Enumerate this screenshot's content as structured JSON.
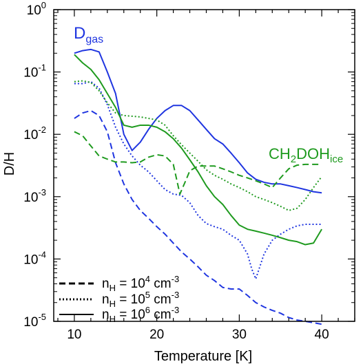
{
  "chart_data": {
    "type": "line",
    "xlabel": "Temperature [K]",
    "ylabel": "D/H",
    "xlim": [
      7.5,
      44
    ],
    "ylim": [
      1e-05,
      1
    ],
    "yscale": "log",
    "grid": false,
    "x_ticks": [
      "10",
      "20",
      "30",
      "40"
    ],
    "y_ticks": [
      {
        "base": "10",
        "exp": "-5"
      },
      {
        "base": "10",
        "exp": "-4"
      },
      {
        "base": "10",
        "exp": "-3"
      },
      {
        "base": "10",
        "exp": "-2"
      },
      {
        "base": "10",
        "exp": "-1"
      },
      {
        "base": "10",
        "exp": "0"
      }
    ],
    "annotations": [
      {
        "main": "D",
        "sub": "gas",
        "color": "#1f35e0"
      },
      {
        "main": "CH",
        "sub1": "2",
        "mid": "DOH",
        "sub2": "ice",
        "color": "#1e9a1e"
      }
    ],
    "legend": {
      "placement": "bottom-left",
      "entries": [
        {
          "style": "dashed",
          "prefix": "n",
          "sub": "H",
          "mid": " = 10",
          "sup": "4",
          "unit": " cm",
          "unit_sup": "-3"
        },
        {
          "style": "dotted",
          "prefix": "n",
          "sub": "H",
          "mid": " = 10",
          "sup": "5",
          "unit": " cm",
          "unit_sup": "-3"
        },
        {
          "style": "solid",
          "prefix": "n",
          "sub": "H",
          "mid": " = 10",
          "sup": "6",
          "unit": " cm",
          "unit_sup": "-3"
        }
      ]
    },
    "series": [
      {
        "species": "gas",
        "density": "1e4",
        "style": "dashed",
        "color": "#1f35e0",
        "x": [
          10,
          11,
          12,
          13,
          14,
          15,
          16,
          17,
          18,
          19,
          20,
          21,
          22,
          23,
          24,
          25,
          26,
          27,
          28,
          29,
          30,
          31,
          32,
          33,
          34,
          35,
          36,
          37,
          38,
          39,
          40
        ],
        "y": [
          0.018,
          0.022,
          0.024,
          0.02,
          0.011,
          0.0035,
          0.0016,
          0.0009,
          0.0006,
          0.00045,
          0.00033,
          0.00025,
          0.00018,
          0.00013,
          0.0001,
          7.5e-05,
          5.5e-05,
          4.5e-05,
          3.5e-05,
          3.3e-05,
          3.3e-05,
          2.6e-05,
          2e-05,
          1.7e-05,
          1.5e-05,
          1.35e-05,
          1.15e-05,
          1.05e-05,
          1e-05,
          9.5e-06,
          9e-06
        ]
      },
      {
        "species": "gas",
        "density": "1e5",
        "style": "dotted",
        "color": "#1f35e0",
        "x": [
          10,
          11,
          12,
          13,
          14,
          15,
          16,
          17,
          18,
          19,
          20,
          21,
          22,
          23,
          24,
          25,
          26,
          27,
          28,
          29,
          30,
          31,
          31.5,
          32,
          33,
          34,
          35,
          36,
          37,
          38,
          39,
          40
        ],
        "y": [
          0.065,
          0.065,
          0.07,
          0.055,
          0.03,
          0.013,
          0.007,
          0.0045,
          0.0032,
          0.0025,
          0.0018,
          0.0013,
          0.0011,
          0.00105,
          0.0008,
          0.0005,
          0.00037,
          0.00033,
          0.0003,
          0.00024,
          0.0002,
          0.00012,
          7e-05,
          4.8e-05,
          0.00012,
          0.0002,
          0.00025,
          0.0003,
          0.00034,
          0.00036,
          0.00036,
          0.00036
        ]
      },
      {
        "species": "gas",
        "density": "1e6",
        "style": "solid",
        "color": "#1f35e0",
        "x": [
          10,
          11,
          12,
          13,
          14,
          15,
          16,
          17,
          18,
          19,
          20,
          21,
          22,
          23,
          24,
          25,
          26,
          27,
          28,
          29,
          30,
          31,
          32,
          33,
          34,
          35,
          36,
          37,
          38,
          39,
          40
        ],
        "y": [
          0.2,
          0.22,
          0.23,
          0.21,
          0.1,
          0.045,
          0.01,
          0.0055,
          0.0075,
          0.012,
          0.018,
          0.024,
          0.029,
          0.029,
          0.024,
          0.017,
          0.012,
          0.0085,
          0.007,
          0.005,
          0.0035,
          0.0024,
          0.0019,
          0.0017,
          0.0016,
          0.0016,
          0.0015,
          0.0014,
          0.0013,
          0.0012,
          0.00115
        ]
      },
      {
        "species": "ice",
        "density": "1e4",
        "style": "dashed",
        "color": "#1e9a1e",
        "x": [
          10,
          11,
          12,
          13,
          14,
          15,
          16,
          17,
          18,
          19,
          20,
          21,
          22,
          22.8,
          23.5,
          24,
          25,
          26,
          27,
          28,
          29,
          30,
          31,
          32,
          33,
          34,
          35,
          36,
          37,
          38,
          39,
          40
        ],
        "y": [
          0.011,
          0.0095,
          0.0065,
          0.0045,
          0.004,
          0.0036,
          0.0036,
          0.0035,
          0.0036,
          0.0043,
          0.0047,
          0.0045,
          0.0033,
          0.0011,
          0.0018,
          0.0026,
          0.0031,
          0.0031,
          0.0031,
          0.0028,
          0.0025,
          0.0022,
          0.002,
          0.0018,
          0.0016,
          0.0014,
          0.002,
          0.0028,
          0.0032,
          0.0033,
          0.0033,
          0.0033
        ]
      },
      {
        "species": "ice",
        "density": "1e5",
        "style": "dotted",
        "color": "#1e9a1e",
        "x": [
          10,
          11,
          12,
          13,
          14,
          15,
          16,
          17,
          18,
          19,
          20,
          21,
          22,
          23,
          24,
          25,
          26,
          27,
          28,
          29,
          30,
          31,
          32,
          33,
          34,
          35,
          36,
          37,
          38,
          39,
          40
        ],
        "y": [
          0.07,
          0.072,
          0.068,
          0.05,
          0.032,
          0.022,
          0.02,
          0.0195,
          0.019,
          0.018,
          0.017,
          0.014,
          0.0095,
          0.0068,
          0.005,
          0.0037,
          0.0027,
          0.0022,
          0.0019,
          0.0016,
          0.0014,
          0.0012,
          0.001,
          0.0009,
          0.0008,
          0.0007,
          0.0006,
          0.00065,
          0.0009,
          0.0014,
          0.0021
        ]
      },
      {
        "species": "ice",
        "density": "1e6",
        "style": "solid",
        "color": "#1e9a1e",
        "x": [
          10,
          11,
          12,
          13,
          14,
          15,
          16,
          17,
          18,
          19,
          20,
          21,
          22,
          23,
          24,
          25,
          26,
          27,
          28,
          29,
          30,
          31,
          32,
          33,
          34,
          35,
          36,
          37,
          38,
          39,
          40
        ],
        "y": [
          0.19,
          0.14,
          0.11,
          0.075,
          0.045,
          0.027,
          0.014,
          0.013,
          0.014,
          0.014,
          0.013,
          0.011,
          0.0085,
          0.006,
          0.0039,
          0.0025,
          0.0015,
          0.001,
          0.00075,
          0.0005,
          0.00035,
          0.0003,
          0.00028,
          0.00026,
          0.00024,
          0.00022,
          0.0002,
          0.00019,
          0.00017,
          0.00018,
          0.0003
        ]
      }
    ]
  }
}
